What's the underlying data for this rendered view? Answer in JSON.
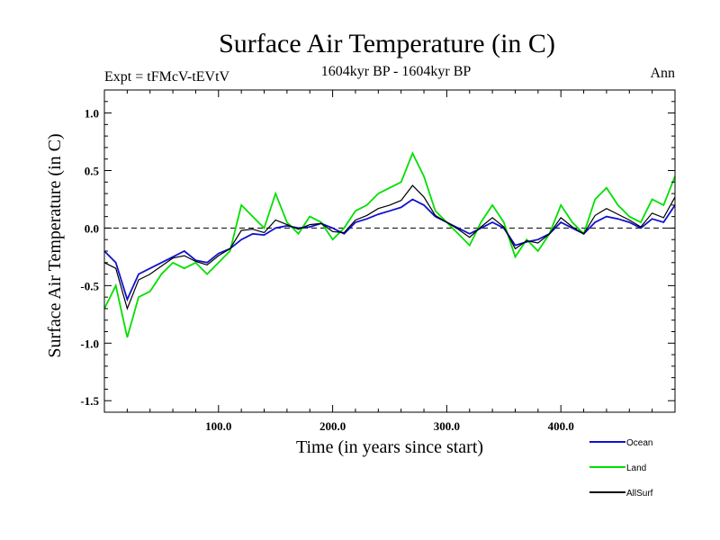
{
  "chart_data": {
    "type": "line",
    "title": "Surface Air Temperature (in C)",
    "subtitle": "1604kyr BP - 1604kyr BP",
    "experiment_label": "Expt = tFMcV-tEVtV",
    "period_label": "Ann",
    "xlabel": "Time (in years since start)",
    "ylabel": "Surface Air Temperature (in C)",
    "xlim": [
      0,
      500
    ],
    "ylim": [
      -1.6,
      1.2
    ],
    "x_ticks": [
      100,
      200,
      300,
      400
    ],
    "x_tick_labels": [
      "100.0",
      "200.0",
      "300.0",
      "400.0"
    ],
    "y_ticks": [
      -1.5,
      -1.0,
      -0.5,
      0.0,
      0.5,
      1.0
    ],
    "y_tick_labels": [
      "-1.5",
      "-1.0",
      "-0.5",
      "0.0",
      "0.5",
      "1.0"
    ],
    "reference_line": 0.0,
    "x": [
      0,
      10,
      20,
      30,
      40,
      50,
      60,
      70,
      80,
      90,
      100,
      110,
      120,
      130,
      140,
      150,
      160,
      170,
      180,
      190,
      200,
      210,
      220,
      230,
      240,
      250,
      260,
      270,
      280,
      290,
      300,
      310,
      320,
      330,
      340,
      350,
      360,
      370,
      380,
      390,
      400,
      410,
      420,
      430,
      440,
      450,
      460,
      470,
      480,
      490,
      500
    ],
    "series": [
      {
        "name": "Ocean",
        "color": "#1010d0",
        "values": [
          -0.2,
          -0.3,
          -0.62,
          -0.4,
          -0.35,
          -0.3,
          -0.25,
          -0.2,
          -0.28,
          -0.3,
          -0.22,
          -0.18,
          -0.1,
          -0.05,
          -0.06,
          0.0,
          0.02,
          0.0,
          0.01,
          0.04,
          0.0,
          -0.05,
          0.05,
          0.08,
          0.12,
          0.15,
          0.18,
          0.25,
          0.2,
          0.1,
          0.05,
          0.0,
          -0.05,
          0.0,
          0.05,
          0.0,
          -0.15,
          -0.12,
          -0.1,
          -0.05,
          0.05,
          0.0,
          -0.05,
          0.05,
          0.1,
          0.08,
          0.05,
          0.0,
          0.08,
          0.05,
          0.2
        ]
      },
      {
        "name": "Land",
        "color": "#00e000",
        "values": [
          -0.7,
          -0.5,
          -0.95,
          -0.6,
          -0.55,
          -0.4,
          -0.3,
          -0.35,
          -0.3,
          -0.4,
          -0.3,
          -0.2,
          0.2,
          0.1,
          0.0,
          0.3,
          0.05,
          -0.05,
          0.1,
          0.05,
          -0.1,
          0.0,
          0.15,
          0.2,
          0.3,
          0.35,
          0.4,
          0.65,
          0.45,
          0.15,
          0.05,
          -0.05,
          -0.15,
          0.05,
          0.2,
          0.05,
          -0.25,
          -0.1,
          -0.2,
          -0.05,
          0.2,
          0.05,
          -0.05,
          0.25,
          0.35,
          0.2,
          0.1,
          0.05,
          0.25,
          0.2,
          0.45
        ]
      },
      {
        "name": "AllSurf",
        "color": "#000000",
        "values": [
          -0.3,
          -0.35,
          -0.7,
          -0.45,
          -0.4,
          -0.33,
          -0.26,
          -0.24,
          -0.29,
          -0.32,
          -0.24,
          -0.18,
          -0.02,
          -0.01,
          -0.04,
          0.07,
          0.03,
          -0.01,
          0.03,
          0.04,
          -0.03,
          -0.04,
          0.07,
          0.11,
          0.17,
          0.2,
          0.24,
          0.37,
          0.27,
          0.11,
          0.05,
          -0.01,
          -0.08,
          0.01,
          0.09,
          0.01,
          -0.18,
          -0.11,
          -0.13,
          -0.05,
          0.09,
          0.01,
          -0.05,
          0.11,
          0.17,
          0.12,
          0.07,
          0.01,
          0.13,
          0.09,
          0.27
        ]
      }
    ],
    "legend_position": "bottom-right"
  }
}
